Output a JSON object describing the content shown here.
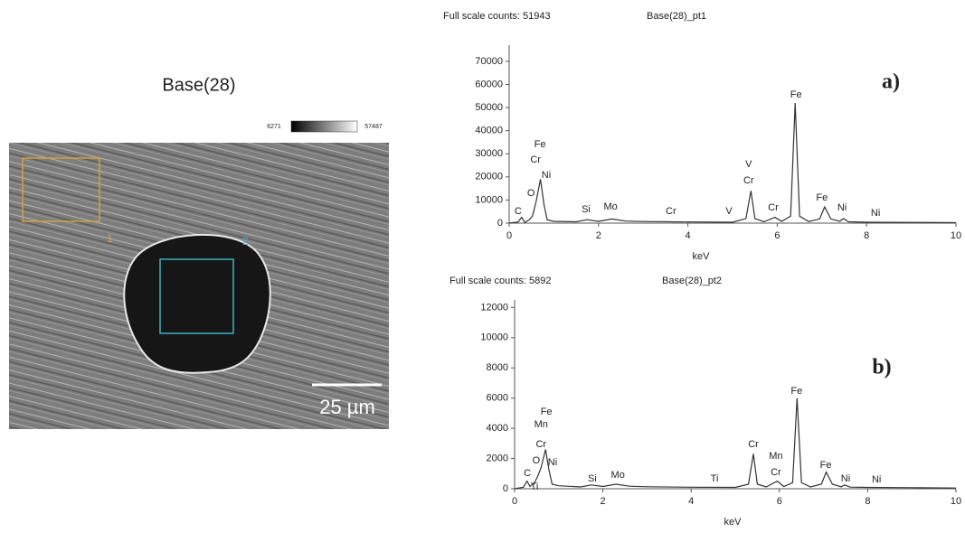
{
  "image": {
    "title": "Base(28)",
    "colorbar_min": "6271",
    "colorbar_max": "57487",
    "region_1": "1",
    "region_2": "2",
    "scale_bar": "25 µm"
  },
  "chart_data": [
    {
      "type": "line",
      "panel_label": "a)",
      "header_counts": "Full scale counts: 51943",
      "header_spectrum": "Base(28)_pt1",
      "x_label": "keV",
      "xlim": [
        0,
        10
      ],
      "xticks": [
        0,
        2,
        4,
        6,
        8,
        10
      ],
      "ylim": [
        0,
        77000
      ],
      "yticks": [
        0,
        10000,
        20000,
        30000,
        40000,
        50000,
        60000,
        70000
      ],
      "color": "#333333",
      "x": [
        0,
        0.2,
        0.28,
        0.35,
        0.45,
        0.52,
        0.6,
        0.7,
        0.78,
        0.85,
        1.0,
        1.5,
        1.74,
        2.0,
        2.3,
        2.6,
        3.0,
        4.0,
        5.0,
        5.3,
        5.41,
        5.5,
        5.7,
        5.95,
        6.1,
        6.3,
        6.4,
        6.5,
        6.7,
        6.95,
        7.06,
        7.2,
        7.4,
        7.48,
        7.6,
        8.0,
        9.0,
        10
      ],
      "values": [
        0,
        500,
        2500,
        300,
        1500,
        3000,
        9000,
        19000,
        8000,
        1500,
        800,
        600,
        1500,
        800,
        1800,
        900,
        700,
        500,
        400,
        2000,
        14000,
        2000,
        600,
        2500,
        800,
        3000,
        52000,
        3000,
        700,
        1800,
        7000,
        1800,
        800,
        2000,
        600,
        400,
        300,
        200
      ],
      "annotations": [
        {
          "text": "Fe",
          "x": 0.69,
          "y": 34000
        },
        {
          "text": "Cr",
          "x": 0.59,
          "y": 27400
        },
        {
          "text": "Ni",
          "x": 0.83,
          "y": 20700
        },
        {
          "text": "O",
          "x": 0.49,
          "y": 12900
        },
        {
          "text": "C",
          "x": 0.2,
          "y": 5100
        },
        {
          "text": "Si",
          "x": 1.72,
          "y": 5900
        },
        {
          "text": "Mo",
          "x": 2.27,
          "y": 7000
        },
        {
          "text": "Cr",
          "x": 3.62,
          "y": 5100
        },
        {
          "text": "V",
          "x": 4.92,
          "y": 5100
        },
        {
          "text": "V",
          "x": 5.36,
          "y": 25400
        },
        {
          "text": "Cr",
          "x": 5.36,
          "y": 18400
        },
        {
          "text": "Cr",
          "x": 5.91,
          "y": 6600
        },
        {
          "text": "Fe",
          "x": 6.42,
          "y": 55500
        },
        {
          "text": "Fe",
          "x": 7.0,
          "y": 11000
        },
        {
          "text": "Ni",
          "x": 7.45,
          "y": 6600
        },
        {
          "text": "Ni",
          "x": 8.2,
          "y": 4300
        }
      ]
    },
    {
      "type": "line",
      "panel_label": "b)",
      "header_counts": "Full scale counts: 5892",
      "header_spectrum": "Base(28)_pt2",
      "x_label": "keV",
      "xlim": [
        0,
        10
      ],
      "xticks": [
        0,
        2,
        4,
        6,
        8,
        10
      ],
      "ylim": [
        0,
        12500
      ],
      "yticks": [
        0,
        2000,
        4000,
        6000,
        8000,
        10000,
        12000
      ],
      "color": "#333333",
      "x": [
        0,
        0.2,
        0.28,
        0.35,
        0.45,
        0.52,
        0.6,
        0.7,
        0.78,
        0.85,
        1.0,
        1.5,
        1.74,
        2.0,
        2.3,
        2.6,
        3.0,
        4.0,
        5.0,
        5.3,
        5.41,
        5.5,
        5.7,
        5.95,
        6.1,
        6.3,
        6.4,
        6.5,
        6.7,
        6.95,
        7.06,
        7.2,
        7.4,
        7.48,
        7.6,
        8.0,
        9.0,
        10
      ],
      "values": [
        0,
        100,
        500,
        150,
        400,
        800,
        1400,
        2600,
        1200,
        300,
        200,
        120,
        250,
        150,
        300,
        170,
        130,
        100,
        90,
        300,
        2300,
        300,
        120,
        500,
        150,
        400,
        6000,
        400,
        120,
        300,
        1100,
        300,
        130,
        250,
        110,
        90,
        70,
        50
      ],
      "annotations": [
        {
          "text": "Fe",
          "x": 0.72,
          "y": 5070
        },
        {
          "text": "Mn",
          "x": 0.6,
          "y": 4240
        },
        {
          "text": "Cr",
          "x": 0.6,
          "y": 2930
        },
        {
          "text": "O",
          "x": 0.49,
          "y": 1850
        },
        {
          "text": "Ni",
          "x": 0.86,
          "y": 1730
        },
        {
          "text": "C",
          "x": 0.29,
          "y": 1000
        },
        {
          "text": "Ti",
          "x": 0.45,
          "y": 100
        },
        {
          "text": "Si",
          "x": 1.76,
          "y": 660
        },
        {
          "text": "Mo",
          "x": 2.34,
          "y": 900
        },
        {
          "text": "Ti",
          "x": 4.53,
          "y": 660
        },
        {
          "text": "Cr",
          "x": 5.41,
          "y": 2930
        },
        {
          "text": "Mn",
          "x": 5.92,
          "y": 2150
        },
        {
          "text": "Cr",
          "x": 5.92,
          "y": 1070
        },
        {
          "text": "Fe",
          "x": 6.39,
          "y": 6450
        },
        {
          "text": "Fe",
          "x": 7.05,
          "y": 1550
        },
        {
          "text": "Ni",
          "x": 7.5,
          "y": 660
        },
        {
          "text": "Ni",
          "x": 8.2,
          "y": 600
        }
      ]
    }
  ]
}
